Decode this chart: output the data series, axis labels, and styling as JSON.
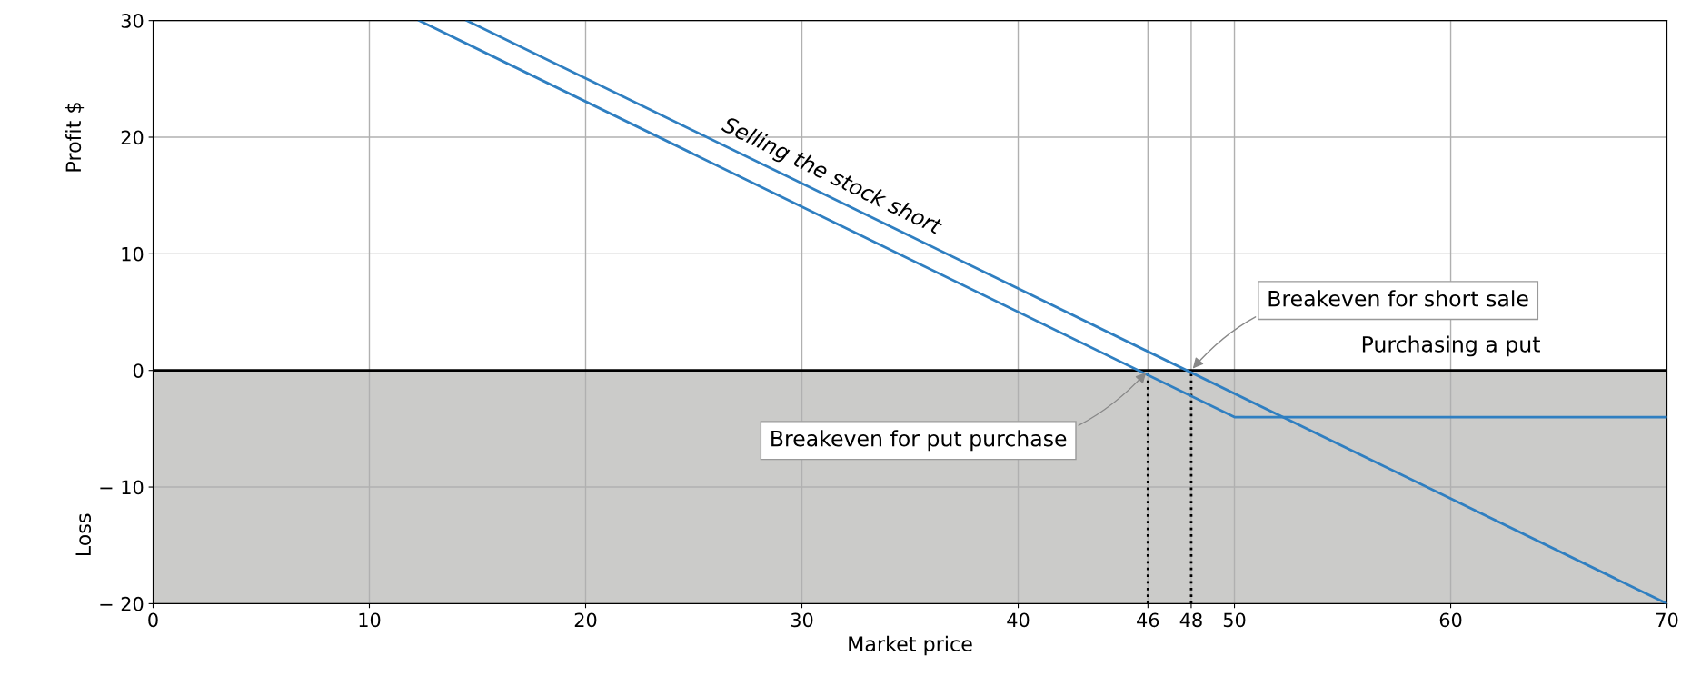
{
  "chart_data": {
    "type": "line",
    "xlabel": "Market price",
    "ylabel": "Profit $",
    "series": [
      {
        "x": [
          14.5,
          70
        ],
        "values": [
          30,
          -20
        ],
        "color": "#2f7fc1"
      },
      {
        "x": [
          12.3,
          50,
          70
        ],
        "values": [
          30,
          -4,
          -4
        ],
        "color": "#2f7fc1"
      }
    ],
    "xlim": [
      0,
      70
    ],
    "ylim": [
      -20,
      30
    ],
    "xticks": [
      0,
      10,
      20,
      30,
      40,
      46,
      48,
      50,
      60,
      70
    ],
    "yticks": [
      {
        "value": -20,
        "label": "− 20"
      },
      {
        "value": -10,
        "label": "− 10"
      },
      0,
      10,
      20,
      30
    ],
    "grid": true,
    "line_style": "solid",
    "marker": "none",
    "bands": [
      {
        "axis": "y",
        "from": -20,
        "to": 0,
        "color": "#cbcbc9"
      }
    ],
    "ref_lines": [
      {
        "axis": "y",
        "value": 0,
        "color": "#000000",
        "line_style": "solid"
      },
      {
        "axis": "x",
        "value": 46,
        "color": "#000000",
        "line_style": "dotted"
      },
      {
        "axis": "x",
        "value": 48,
        "color": "#000000",
        "line_style": "dotted"
      }
    ],
    "annotations": [
      "Selling the stock short",
      {
        "text": "Breakeven for short sale",
        "x": 48,
        "y": 0
      },
      {
        "text": "Breakeven for put purchase",
        "x": 46,
        "y": 0
      },
      {
        "text": "Purchasing a put",
        "x": 60,
        "y": 0
      },
      "Loss"
    ]
  }
}
